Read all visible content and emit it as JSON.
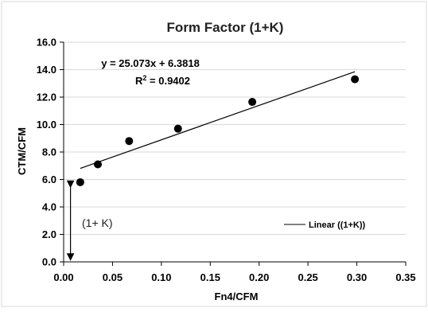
{
  "chart_data": {
    "type": "scatter",
    "title": "Form Factor (1+K)",
    "xlabel": "Fn4/CFM",
    "ylabel": "CTM/CFM",
    "xlim": [
      0.0,
      0.35
    ],
    "ylim": [
      0.0,
      16.0
    ],
    "x_ticks": [
      "0.00",
      "0.05",
      "0.10",
      "0.15",
      "0.20",
      "0.25",
      "0.30",
      "0.35"
    ],
    "y_ticks": [
      "0.0",
      "2.0",
      "4.0",
      "6.0",
      "8.0",
      "10.0",
      "12.0",
      "14.0",
      "16.0"
    ],
    "grid": "horizontal",
    "points": [
      {
        "x": 0.017,
        "y": 5.8
      },
      {
        "x": 0.035,
        "y": 7.1
      },
      {
        "x": 0.067,
        "y": 8.8
      },
      {
        "x": 0.117,
        "y": 9.7
      },
      {
        "x": 0.193,
        "y": 11.65
      },
      {
        "x": 0.298,
        "y": 13.3
      }
    ],
    "trendline": {
      "type": "linear",
      "slope": 25.073,
      "intercept": 6.3818,
      "x_range": [
        0.017,
        0.298
      ],
      "equation": "y = 25.073x + 6.3818",
      "r2_prefix": "R",
      "r2_sup": "2",
      "r2_value": " = 0.9402"
    },
    "legend": {
      "label": "Linear ((1+K))",
      "position": "bottom-right"
    },
    "annotation": {
      "text": "(1+ K)",
      "arrow": {
        "x": 0.007,
        "y_from": 6.0,
        "y_to": 0.0
      }
    }
  }
}
